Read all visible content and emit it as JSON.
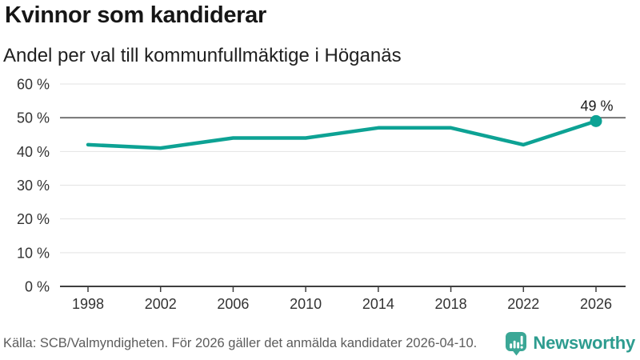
{
  "header": {
    "title": "Kvinnor som kandiderar",
    "subtitle": "Andel per val till kommunfullmäktige i Höganäs"
  },
  "chart_data": {
    "type": "line",
    "title": "Kvinnor som kandiderar",
    "subtitle": "Andel per val till kommunfullmäktige i Höganäs",
    "categories": [
      "1998",
      "2002",
      "2006",
      "2010",
      "2014",
      "2018",
      "2022",
      "2026"
    ],
    "values": [
      42,
      41,
      44,
      44,
      47,
      47,
      42,
      49
    ],
    "unit": "%",
    "ylim": [
      0,
      60
    ],
    "ytick_step": 10,
    "ytick_labels": [
      "0 %",
      "10 %",
      "20 %",
      "30 %",
      "40 %",
      "50 %",
      "60 %"
    ],
    "emphasized_gridline_value": 50,
    "grid": true,
    "legend": "none",
    "last_point_label": "49 %",
    "last_point_marker": "dot"
  },
  "colors": {
    "line": "#0da294",
    "point": "#0da294",
    "grid": "#e3e3e3",
    "grid_emphasized": "#757575",
    "axis": "#3f3f3f",
    "tick_text": "#333333",
    "annotation_text": "#1a1a1a",
    "brand_teal": "#3ba796"
  },
  "footer": {
    "source": "Källa: SCB/Valmyndigheten. För 2026 gäller det anmälda kandidater 2026-04-10.",
    "brand_name": "Newsworthy",
    "brand_icon": "newsworthy-speech-bubble-bar-chart-icon"
  }
}
